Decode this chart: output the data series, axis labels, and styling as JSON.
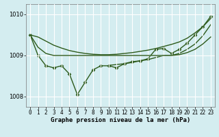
{
  "xlabel": "Graphe pression niveau de la mer (hPa)",
  "x_values": [
    0,
    1,
    2,
    3,
    4,
    5,
    6,
    7,
    8,
    9,
    10,
    11,
    12,
    13,
    14,
    15,
    16,
    17,
    18,
    19,
    20,
    21,
    22,
    23
  ],
  "smooth1": [
    1009.5,
    1009.45,
    1009.35,
    1009.25,
    1009.18,
    1009.12,
    1009.08,
    1009.05,
    1009.03,
    1009.02,
    1009.02,
    1009.03,
    1009.05,
    1009.07,
    1009.1,
    1009.13,
    1009.17,
    1009.22,
    1009.27,
    1009.33,
    1009.42,
    1009.55,
    1009.7,
    1009.9
  ],
  "smooth2": [
    1009.5,
    1009.2,
    1009.05,
    1009.0,
    1009.0,
    1009.0,
    1009.0,
    1009.0,
    1009.0,
    1009.0,
    1009.0,
    1009.0,
    1009.0,
    1009.0,
    1009.0,
    1009.0,
    1009.0,
    1009.0,
    1009.0,
    1009.02,
    1009.07,
    1009.15,
    1009.28,
    1009.45
  ],
  "smooth3": [
    null,
    null,
    null,
    null,
    null,
    null,
    null,
    null,
    null,
    null,
    1008.76,
    1008.78,
    1008.8,
    1008.83,
    1008.87,
    1008.9,
    1008.95,
    1009.0,
    1009.0,
    1009.05,
    1009.15,
    1009.28,
    1009.48,
    1009.75
  ],
  "jagged": [
    1009.5,
    1009.0,
    1008.75,
    1008.7,
    1008.75,
    1008.55,
    1008.05,
    1008.35,
    1008.65,
    1008.75,
    1008.75,
    1008.7,
    1008.8,
    1008.85,
    1008.87,
    1008.92,
    1009.15,
    1009.17,
    1009.05,
    1009.15,
    1009.3,
    1009.5,
    1009.7,
    1009.95
  ],
  "ylim": [
    1007.75,
    1010.25
  ],
  "yticks": [
    1008,
    1009,
    1010
  ],
  "background_color": "#d4edf0",
  "grid_color": "#ffffff",
  "line_color": "#2d5a1b",
  "line_width": 1.0,
  "marker_size": 2.5,
  "tick_fontsize": 5.5,
  "xlabel_fontsize": 6.5
}
